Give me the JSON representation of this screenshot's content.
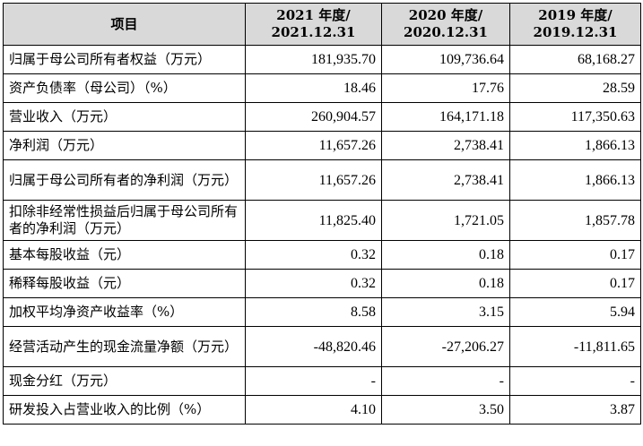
{
  "table": {
    "headers": {
      "item": "项目",
      "col1_line1": "2021 年度/",
      "col1_line2": "2021.12.31",
      "col2_line1": "2020 年度/",
      "col2_line2": "2020.12.31",
      "col3_line1": "2019 年度/",
      "col3_line2": "2019.12.31"
    },
    "rows": [
      {
        "label": "归属于母公司所有者权益（万元）",
        "v2021": "181,935.70",
        "v2020": "109,736.64",
        "v2019": "68,168.27"
      },
      {
        "label": "资产负债率（母公司）（%）",
        "v2021": "18.46",
        "v2020": "17.76",
        "v2019": "28.59"
      },
      {
        "label": "营业收入（万元）",
        "v2021": "260,904.57",
        "v2020": "164,171.18",
        "v2019": "117,350.63"
      },
      {
        "label": "净利润（万元）",
        "v2021": "11,657.26",
        "v2020": "2,738.41",
        "v2019": "1,866.13"
      },
      {
        "label": "归属于母公司所有者的净利润（万元）",
        "v2021": "11,657.26",
        "v2020": "2,738.41",
        "v2019": "1,866.13"
      },
      {
        "label": "扣除非经常性损益后归属于母公司所有者的净利润（万元）",
        "v2021": "11,825.40",
        "v2020": "1,721.05",
        "v2019": "1,857.78"
      },
      {
        "label": "基本每股收益（元）",
        "v2021": "0.32",
        "v2020": "0.18",
        "v2019": "0.17"
      },
      {
        "label": "稀释每股收益（元）",
        "v2021": "0.32",
        "v2020": "0.18",
        "v2019": "0.17"
      },
      {
        "label": "加权平均净资产收益率（%）",
        "v2021": "8.58",
        "v2020": "3.15",
        "v2019": "5.94"
      },
      {
        "label": "经营活动产生的现金流量净额（万元）",
        "v2021": "-48,820.46",
        "v2020": "-27,206.27",
        "v2019": "-11,811.65"
      },
      {
        "label": "现金分红（万元）",
        "v2021": "-",
        "v2020": "-",
        "v2019": "-"
      },
      {
        "label": "研发投入占营业收入的比例（%）",
        "v2021": "4.10",
        "v2020": "3.50",
        "v2019": "3.87"
      }
    ]
  }
}
